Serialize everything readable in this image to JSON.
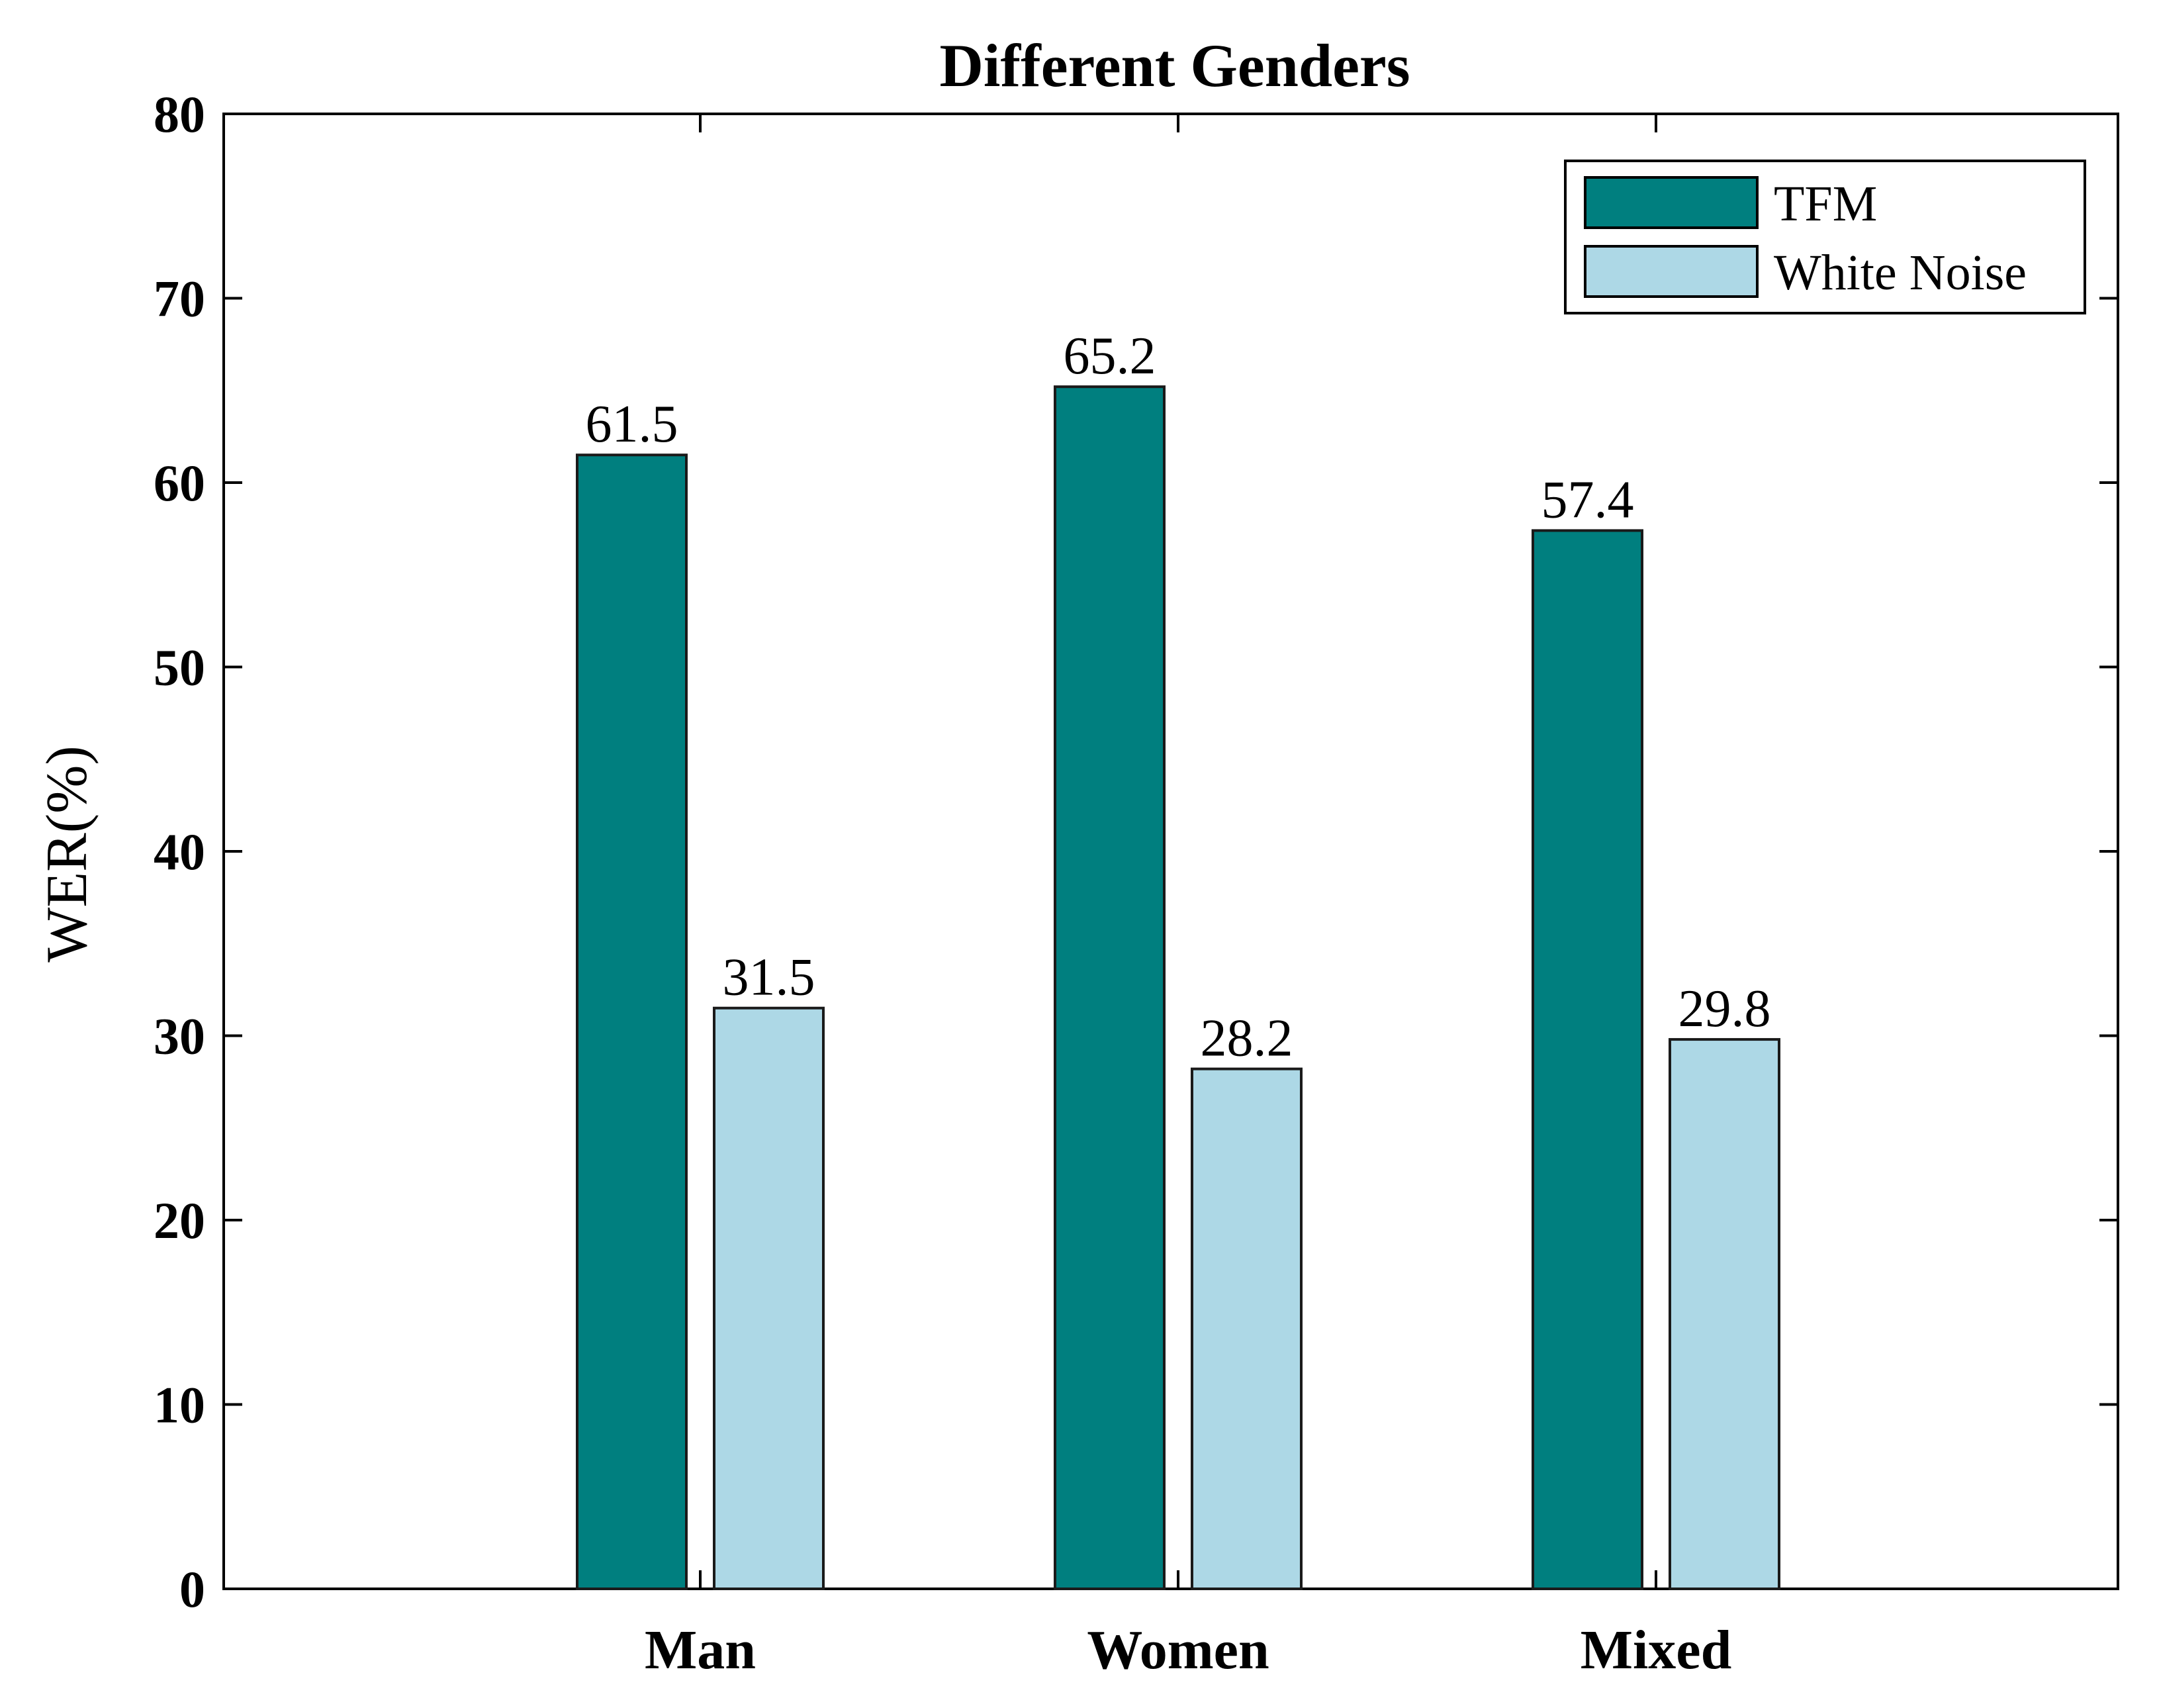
{
  "chart_data": {
    "type": "bar",
    "title": "Different Genders",
    "xlabel": "",
    "ylabel": "WER(%)",
    "ylim": [
      0,
      80
    ],
    "yticks": [
      0,
      10,
      20,
      30,
      40,
      50,
      60,
      70,
      80
    ],
    "ytick_labels": [
      "0",
      "10",
      "20",
      "30",
      "40",
      "50",
      "60",
      "70",
      "80"
    ],
    "categories": [
      "Man",
      "Women",
      "Mixed"
    ],
    "series": [
      {
        "name": "TFM",
        "color": "#007f7f",
        "values": [
          61.5,
          65.2,
          57.4
        ],
        "labels": [
          "61.5",
          "65.2",
          "57.4"
        ]
      },
      {
        "name": "White Noise",
        "color": "#add8e6",
        "values": [
          31.5,
          28.2,
          29.8
        ],
        "labels": [
          "31.5",
          "28.2",
          "29.8"
        ]
      }
    ],
    "legend_position": "top-right",
    "grid": false
  }
}
